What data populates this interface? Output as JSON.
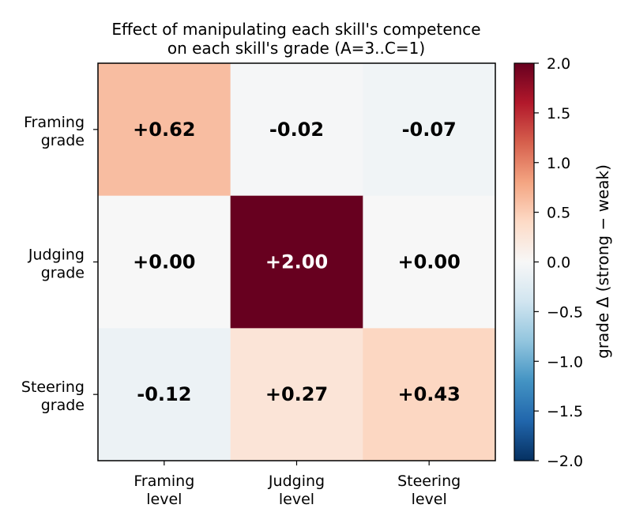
{
  "chart_data": {
    "type": "heatmap",
    "title_lines": [
      "Effect of manipulating each skill's competence",
      "on each skill's grade (A=3..C=1)"
    ],
    "rows": [
      [
        "Framing",
        "grade"
      ],
      [
        "Judging",
        "grade"
      ],
      [
        "Steering",
        "grade"
      ]
    ],
    "columns": [
      [
        "Framing",
        "level"
      ],
      [
        "Judging",
        "level"
      ],
      [
        "Steering",
        "level"
      ]
    ],
    "values": [
      [
        0.62,
        -0.02,
        -0.07
      ],
      [
        0.0,
        2.0,
        0.0
      ],
      [
        -0.12,
        0.27,
        0.43
      ]
    ],
    "cell_labels": [
      [
        "+0.62",
        "-0.02",
        "-0.07"
      ],
      [
        "+0.00",
        "+2.00",
        "+0.00"
      ],
      [
        "-0.12",
        "+0.27",
        "+0.43"
      ]
    ],
    "colormap": "RdBu_r",
    "vmin": -2.0,
    "vmax": 2.0,
    "colorbar": {
      "label": "grade Δ (strong − weak)",
      "ticks": [
        "2.0",
        "1.5",
        "1.0",
        "0.5",
        "0.0",
        "−0.5",
        "−1.0",
        "−1.5",
        "−2.0"
      ],
      "tick_values": [
        2.0,
        1.5,
        1.0,
        0.5,
        0.0,
        -0.5,
        -1.0,
        -1.5,
        -2.0
      ]
    },
    "colors": {
      "cmap_stops": [
        "#053061",
        "#2166ac",
        "#4393c3",
        "#92c5de",
        "#d1e5f0",
        "#f7f7f7",
        "#fddbc7",
        "#f4a582",
        "#d6604d",
        "#b2182b",
        "#67001f"
      ],
      "text_dark": "#000000",
      "text_light": "#ffffff"
    }
  }
}
